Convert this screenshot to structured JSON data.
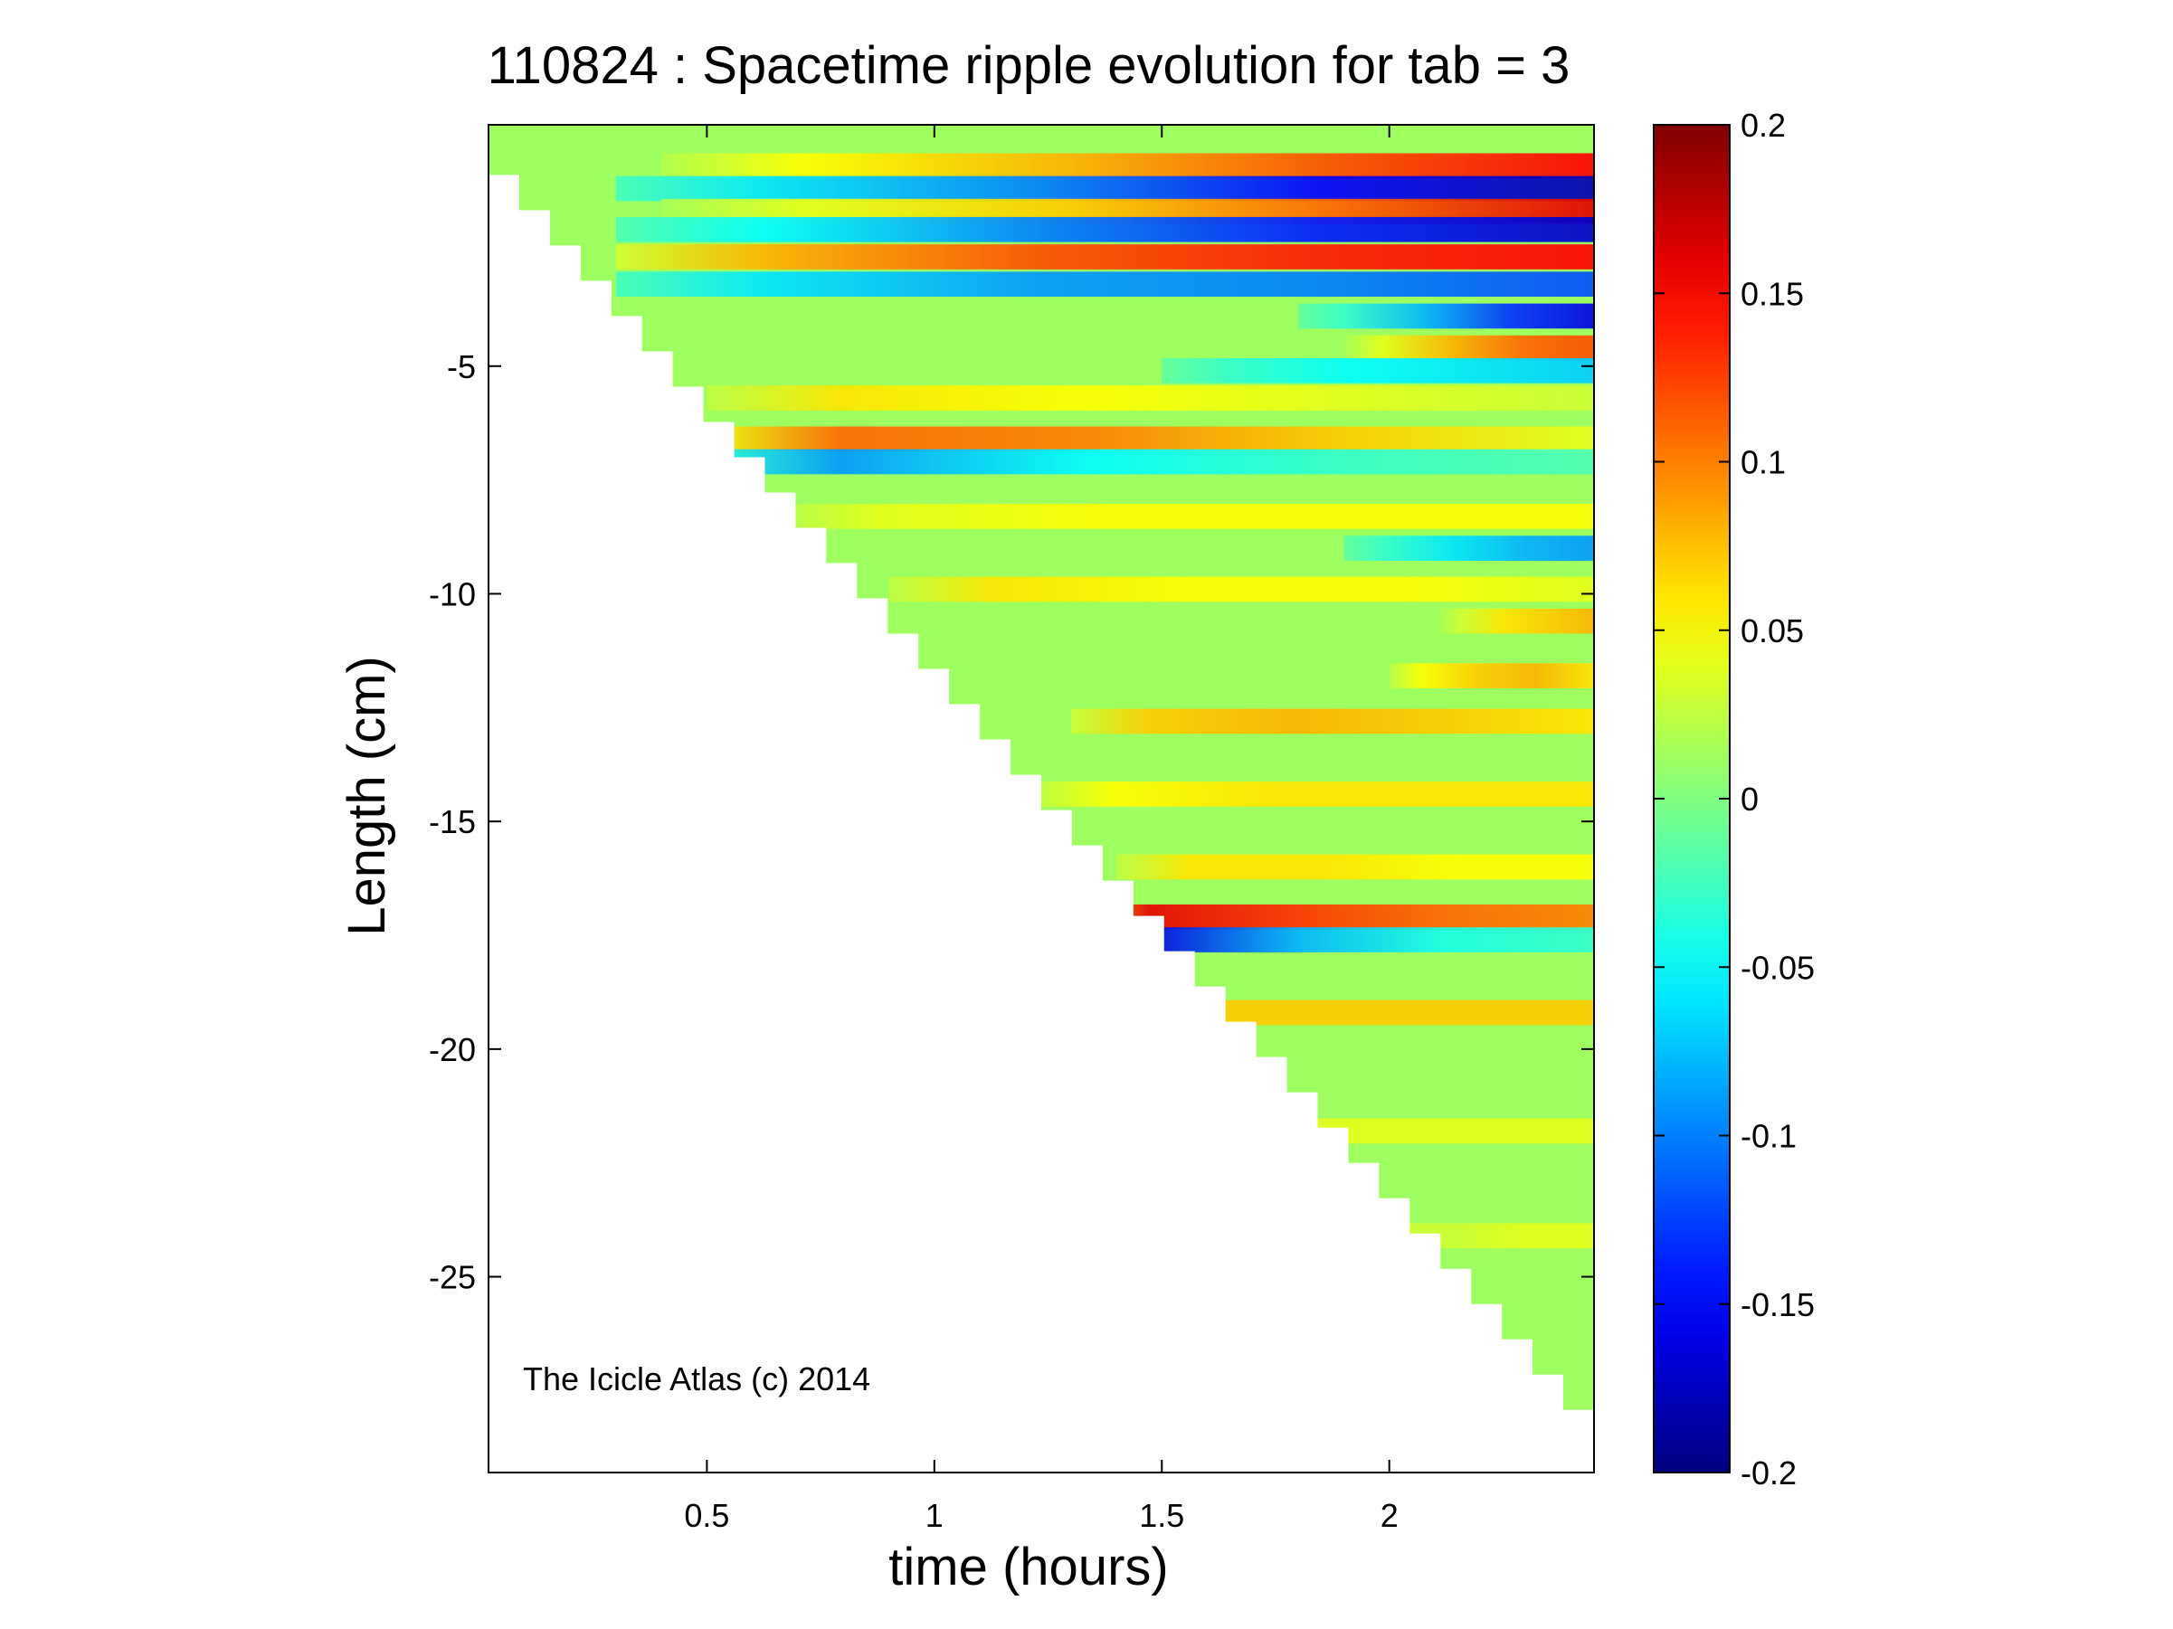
{
  "chart_data": {
    "type": "heatmap",
    "title": "110824 : Spacetime ripple evolution for tab = 3",
    "xlabel": "time (hours)",
    "ylabel": "Length (cm)",
    "xlim": [
      0.02,
      2.45
    ],
    "ylim": [
      -29.3,
      0.3
    ],
    "x_ticks": [
      0.5,
      1,
      1.5,
      2
    ],
    "x_tick_labels": [
      "0.5",
      "1",
      "1.5",
      "2"
    ],
    "y_ticks": [
      -5,
      -10,
      -15,
      -20,
      -25
    ],
    "y_tick_labels": [
      "-5",
      "-10",
      "-15",
      "-20",
      "-25"
    ],
    "colorbar": {
      "colormap": "jet",
      "clim": [
        -0.2,
        0.2
      ],
      "ticks": [
        0.2,
        0.15,
        0.1,
        0.05,
        0,
        -0.05,
        -0.1,
        -0.15,
        -0.2
      ],
      "tick_labels": [
        "0.2",
        "0.15",
        "0.1",
        "0.05",
        "0",
        "-0.05",
        "-0.1",
        "-0.15",
        "-0.2"
      ]
    },
    "data_region": {
      "description_of_mask": "lower-left triangle is empty; icicle tip length grows with time",
      "tip_length_start_cm": -0.8,
      "tip_length_end_cm": -28.7,
      "time_start_hours": 0.02,
      "time_end_hours": 2.45,
      "step_count": 36
    },
    "ripple_bands": [
      {
        "y": -0.6,
        "t0": 0.4,
        "values": [
          0.05,
          0.08,
          0.12,
          0.15
        ]
      },
      {
        "y": -1.1,
        "t0": 0.3,
        "values": [
          -0.06,
          -0.1,
          -0.15,
          -0.18
        ]
      },
      {
        "y": -1.6,
        "t0": 0.4,
        "values": [
          0.04,
          0.07,
          0.11,
          0.16
        ]
      },
      {
        "y": -2.0,
        "t0": 0.3,
        "values": [
          -0.05,
          -0.1,
          -0.14,
          -0.17
        ]
      },
      {
        "y": -2.6,
        "t0": 0.3,
        "values": [
          0.08,
          0.12,
          0.14,
          0.15
        ]
      },
      {
        "y": -3.2,
        "t0": 0.3,
        "values": [
          -0.06,
          -0.09,
          -0.1,
          -0.12
        ]
      },
      {
        "y": -3.9,
        "t0": 1.8,
        "values": [
          -0.03,
          -0.08,
          -0.13,
          -0.16
        ]
      },
      {
        "y": -4.6,
        "t0": 1.9,
        "values": [
          0.04,
          0.08,
          0.11,
          0.12
        ]
      },
      {
        "y": -5.1,
        "t0": 1.5,
        "values": [
          -0.03,
          -0.05,
          -0.06,
          -0.07
        ]
      },
      {
        "y": -5.7,
        "t0": 0.5,
        "values": [
          0.06,
          0.05,
          0.04,
          0.03
        ]
      },
      {
        "y": -6.6,
        "t0": 0.5,
        "values": [
          0.11,
          0.1,
          0.07,
          0.04
        ]
      },
      {
        "y": -7.1,
        "t0": 0.5,
        "values": [
          -0.09,
          -0.05,
          -0.03,
          -0.02
        ]
      },
      {
        "y": -8.3,
        "t0": 0.6,
        "values": [
          0.04,
          0.05,
          0.05,
          0.05
        ]
      },
      {
        "y": -9.0,
        "t0": 1.9,
        "values": [
          -0.03,
          -0.06,
          -0.08,
          -0.09
        ]
      },
      {
        "y": -9.9,
        "t0": 0.9,
        "values": [
          0.06,
          0.05,
          0.05,
          0.04
        ]
      },
      {
        "y": -10.6,
        "t0": 2.1,
        "values": [
          0.03,
          0.06,
          0.07,
          0.08
        ]
      },
      {
        "y": -11.8,
        "t0": 2.0,
        "values": [
          0.05,
          0.07,
          0.08,
          0.06
        ]
      },
      {
        "y": -12.8,
        "t0": 1.3,
        "values": [
          0.07,
          0.08,
          0.07,
          0.06
        ]
      },
      {
        "y": -14.4,
        "t0": 1.2,
        "values": [
          0.05,
          0.06,
          0.06,
          0.06
        ]
      },
      {
        "y": -16.0,
        "t0": 1.4,
        "values": [
          0.06,
          0.06,
          0.05,
          0.05
        ]
      },
      {
        "y": -17.1,
        "t0": 1.3,
        "values": [
          0.16,
          0.13,
          0.11,
          0.1
        ]
      },
      {
        "y": -17.6,
        "t0": 1.3,
        "values": [
          -0.16,
          -0.08,
          -0.04,
          -0.03
        ]
      },
      {
        "y": -19.2,
        "t0": 1.5,
        "values": [
          0.07,
          0.07,
          0.07,
          0.07
        ]
      },
      {
        "y": -21.8,
        "t0": 1.7,
        "values": [
          0.04,
          0.04,
          0.04,
          0.04
        ]
      },
      {
        "y": -24.1,
        "t0": 1.9,
        "values": [
          0.03,
          0.03,
          0.04,
          0.04
        ]
      }
    ],
    "annotations": [
      "The Icicle Atlas (c) 2014"
    ]
  }
}
